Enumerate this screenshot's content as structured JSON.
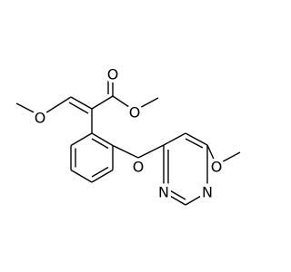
{
  "atoms": [
    {
      "label": "O"
    },
    {
      "label": "O"
    },
    {
      "label": "O"
    },
    {
      "label": "O"
    },
    {
      "label": "O"
    },
    {
      "label": "N"
    },
    {
      "label": "N"
    }
  ]
}
